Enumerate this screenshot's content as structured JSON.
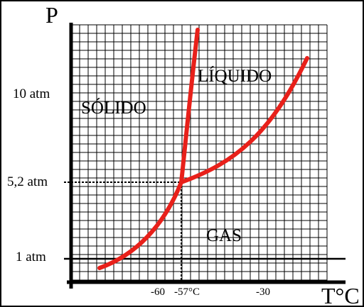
{
  "axes": {
    "y_label": "P",
    "x_label": "T°C"
  },
  "y_ticks": [
    "10 atm",
    "5,2 atm",
    "1 atm"
  ],
  "x_ticks": [
    "-60",
    "-57°C",
    "-30"
  ],
  "regions": [
    "SÓLIDO",
    "LÍQUIDO",
    "GAS"
  ]
}
